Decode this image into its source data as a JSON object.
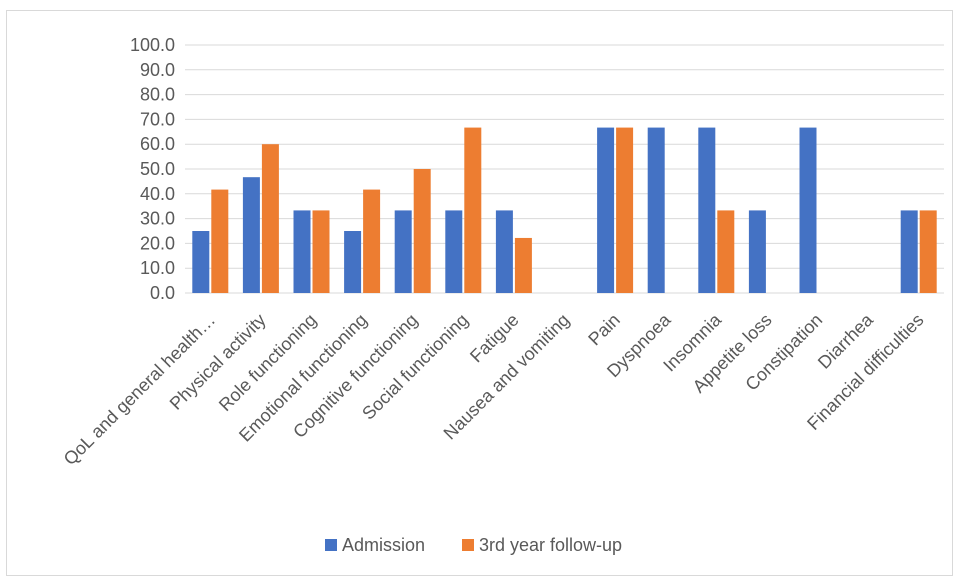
{
  "chart_data": {
    "type": "bar",
    "title": "",
    "xlabel": "",
    "ylabel": "",
    "ylim": [
      0,
      100
    ],
    "ytick_step": 10,
    "ytick_decimals": 1,
    "grid": true,
    "legend_position": "bottom",
    "categories": [
      "QoL and general health…",
      "Physical activity",
      "Role functioning",
      "Emotional functioning",
      "Cognitive functioning",
      "Social functioning",
      "Fatigue",
      "Nausea and vomiting",
      "Pain",
      "Dyspnoea",
      "Insomnia",
      "Appetite loss",
      "Constipation",
      "Diarrhea",
      "Financial difficulties"
    ],
    "series": [
      {
        "name": "Admission",
        "color": "#4472c4",
        "values": [
          25.0,
          46.7,
          33.3,
          25.0,
          33.3,
          33.3,
          33.3,
          0,
          66.7,
          66.7,
          66.7,
          33.3,
          66.7,
          0,
          33.3
        ]
      },
      {
        "name": "3rd year follow-up",
        "color": "#ed7d31",
        "values": [
          41.7,
          60.0,
          33.3,
          41.7,
          50.0,
          66.7,
          22.2,
          0,
          66.7,
          0,
          33.3,
          0,
          0,
          0,
          33.3
        ]
      }
    ]
  }
}
